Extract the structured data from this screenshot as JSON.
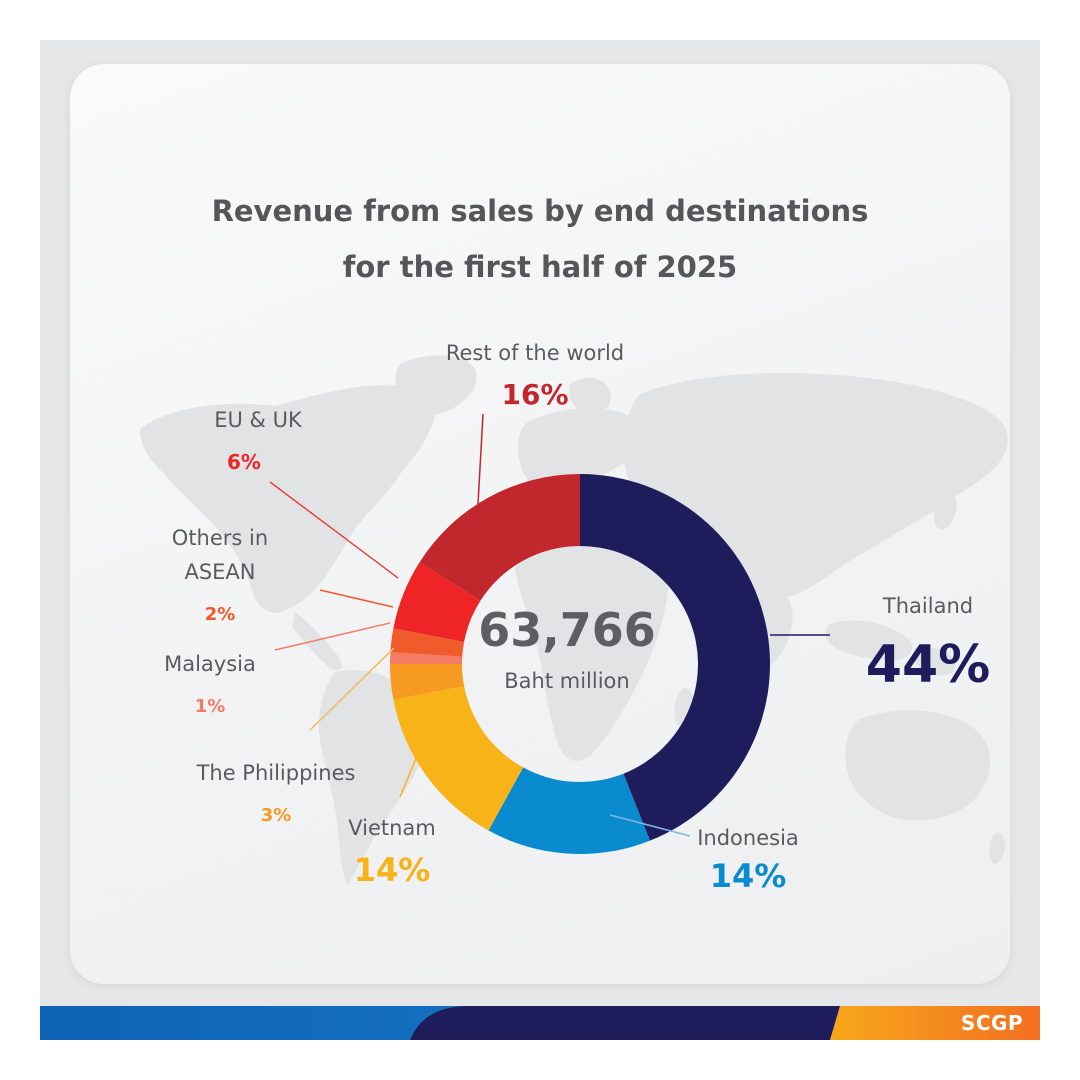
{
  "title_line1": "Revenue from sales by end destinations",
  "title_line2": "for the first half of 2025",
  "brand": "SCGP",
  "colors": {
    "title": "#555659",
    "label": "#5a5b5e",
    "center_value": "#5d5e61",
    "map": "#e2e3e5"
  },
  "chart_data": {
    "type": "pie",
    "title": "Revenue from sales by end destinations for the first half of 2025",
    "center_value": "63,766",
    "center_label": "Baht million",
    "series": [
      {
        "name": "Thailand",
        "value": 44,
        "label": "44%",
        "color": "#1f1c5c"
      },
      {
        "name": "Indonesia",
        "value": 14,
        "label": "14%",
        "color": "#0a8bd0"
      },
      {
        "name": "Vietnam",
        "value": 14,
        "label": "14%",
        "color": "#f7b317"
      },
      {
        "name": "The Philippines",
        "value": 3,
        "label": "3%",
        "color": "#f79a22"
      },
      {
        "name": "Malaysia",
        "value": 1,
        "label": "1%",
        "color": "#f47c63"
      },
      {
        "name": "Others in ASEAN",
        "value": 2,
        "label": "2%",
        "color": "#f15a2b"
      },
      {
        "name": "EU & UK",
        "value": 6,
        "label": "6%",
        "color": "#ee2427"
      },
      {
        "name": "Rest of the world",
        "value": 16,
        "label": "16%",
        "color": "#c3272e"
      }
    ]
  }
}
